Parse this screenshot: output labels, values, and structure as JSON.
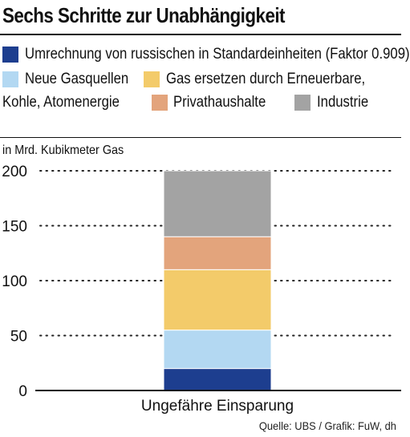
{
  "title": "Sechs Schritte zur Unabhängigkeit",
  "legend": [
    {
      "label": "Umrechnung von russischen in Standardeinheiten (Faktor 0.909)",
      "color": "#1d3e8f"
    },
    {
      "label": "Neue Gasquellen",
      "color": "#b3d8f2"
    },
    {
      "label": "Gas ersetzen durch Erneuerbare,",
      "color": "#f3cb6a"
    },
    {
      "label": "Kohle, Atomenergie",
      "color": ""
    },
    {
      "label": "Privathaushalte",
      "color": "#e3a47c"
    },
    {
      "label": "Industrie",
      "color": "#a3a3a3"
    }
  ],
  "unit_label": "in Mrd. Kubikmeter Gas",
  "source": "Quelle: UBS / Grafik: FuW, dh",
  "chart_data": {
    "type": "bar",
    "stacked": true,
    "categories": [
      "Ungefähre Einsparung"
    ],
    "series": [
      {
        "name": "Umrechnung von russischen in Standardeinheiten (Faktor 0.909)",
        "values": [
          20
        ],
        "color": "#1d3e8f"
      },
      {
        "name": "Neue Gasquellen",
        "values": [
          35
        ],
        "color": "#b3d8f2"
      },
      {
        "name": "Gas ersetzen durch Erneuerbare, Kohle, Atomenergie",
        "values": [
          55
        ],
        "color": "#f3cb6a"
      },
      {
        "name": "Privathaushalte",
        "values": [
          30
        ],
        "color": "#e3a47c"
      },
      {
        "name": "Industrie",
        "values": [
          60
        ],
        "color": "#a3a3a3"
      }
    ],
    "ylim": [
      0,
      200
    ],
    "yticks": [
      0,
      50,
      100,
      150,
      200
    ],
    "ylabel": "in Mrd. Kubikmeter Gas",
    "grid": "dotted horizontal"
  }
}
